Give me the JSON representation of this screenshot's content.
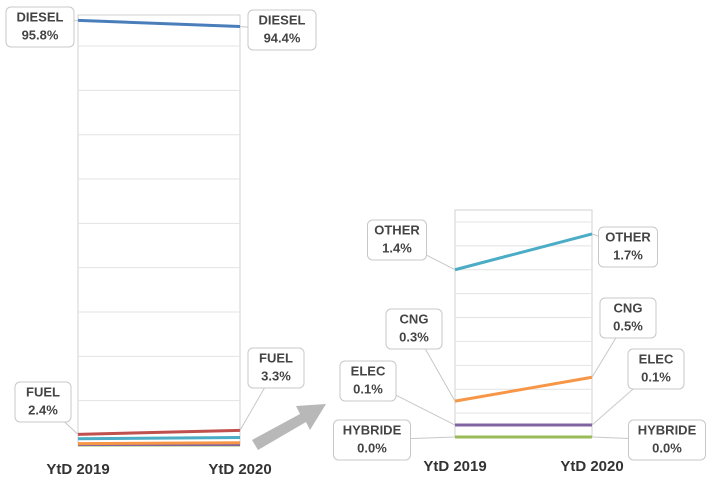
{
  "chart_data": [
    {
      "type": "line",
      "categories": [
        "YtD 2019",
        "YtD 2020"
      ],
      "ylim": [
        0,
        97
      ],
      "yticks": [
        10,
        20,
        30,
        40,
        50,
        60,
        70,
        80,
        90
      ],
      "grid": true,
      "series": [
        {
          "name": "DIESEL",
          "color": "#4a7ebb",
          "values": [
            95.8,
            94.4
          ],
          "value_labels": [
            "95.8%",
            "94.4%"
          ]
        },
        {
          "name": "FUEL",
          "color": "#c0504d",
          "values": [
            2.4,
            3.3
          ],
          "value_labels": [
            "2.4%",
            "3.3%"
          ]
        },
        {
          "color": "#4bacc6",
          "values": [
            1.4,
            1.7
          ]
        },
        {
          "color": "#f79646",
          "values": [
            0.3,
            0.5
          ]
        },
        {
          "color": "#8064a2",
          "values": [
            0.1,
            0.1
          ]
        },
        {
          "color": "#9bbb59",
          "values": [
            0.0,
            0.0
          ]
        }
      ]
    },
    {
      "type": "line",
      "categories": [
        "YtD 2019",
        "YtD 2020"
      ],
      "ylim": [
        0,
        1.9
      ],
      "yticks": [
        0.2,
        0.4,
        0.6,
        0.8,
        1,
        1.2,
        1.4,
        1.6,
        1.8
      ],
      "grid": true,
      "series": [
        {
          "name": "OTHER",
          "color": "#4bacc6",
          "values": [
            1.4,
            1.7
          ],
          "value_labels": [
            "1.4%",
            "1.7%"
          ]
        },
        {
          "name": "CNG",
          "color": "#f79646",
          "values": [
            0.3,
            0.5
          ],
          "value_labels": [
            "0.3%",
            "0.5%"
          ]
        },
        {
          "name": "ELEC",
          "color": "#8064a2",
          "values": [
            0.1,
            0.1
          ],
          "value_labels": [
            "0.1%",
            "0.1%"
          ]
        },
        {
          "name": "HYBRIDE",
          "color": "#9bbb59",
          "values": [
            0.0,
            0.0
          ],
          "value_labels": [
            "0.0%",
            "0.0%"
          ]
        }
      ]
    }
  ]
}
